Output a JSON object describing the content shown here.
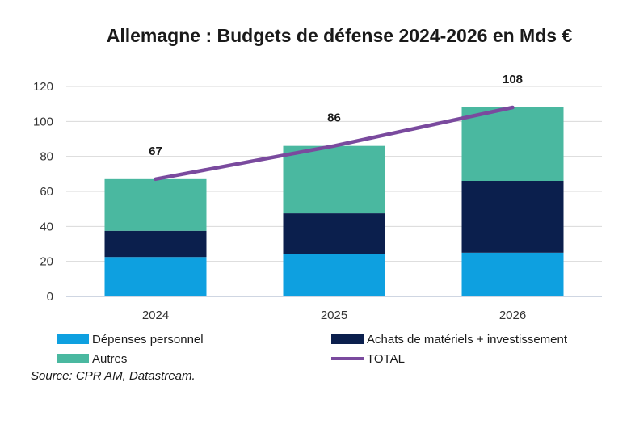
{
  "chart_data": {
    "type": "bar",
    "stacked": true,
    "title": "Allemagne : Budgets de défense 2024-2026 en Mds €",
    "categories": [
      "2024",
      "2025",
      "2026"
    ],
    "series": [
      {
        "name": "Dépenses personnel",
        "type": "bar",
        "color": "#0ea0e0",
        "values": [
          22.5,
          24,
          25
        ]
      },
      {
        "name": "Achats de matériels + investissement",
        "type": "bar",
        "color": "#0b1f4d",
        "values": [
          15,
          23.5,
          41
        ]
      },
      {
        "name": "Autres",
        "type": "bar",
        "color": "#4ab8a0",
        "values": [
          29.5,
          38.5,
          42
        ]
      },
      {
        "name": "TOTAL",
        "type": "line",
        "color": "#7a4a9e",
        "values": [
          67,
          86,
          108
        ]
      }
    ],
    "total_labels": [
      "67",
      "86",
      "108"
    ],
    "yticks": [
      0,
      20,
      40,
      60,
      80,
      100,
      120
    ],
    "ylim": [
      0,
      120
    ],
    "grid": true,
    "legend_position": "bottom"
  },
  "source": "Source: CPR AM, Datastream."
}
